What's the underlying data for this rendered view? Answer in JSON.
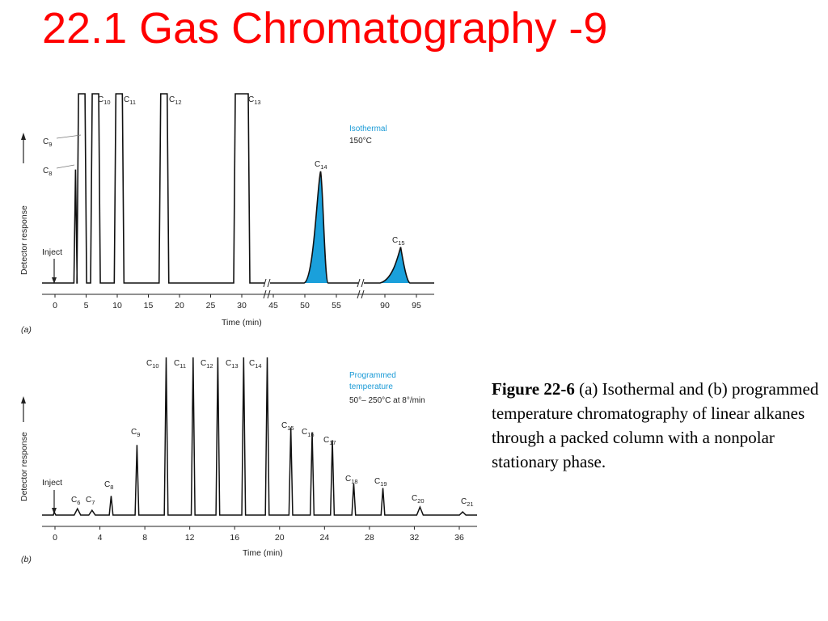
{
  "slide": {
    "title": "22.1 Gas Chromatography -9",
    "caption_fig": "Figure 22-6",
    "caption_text": " (a) Isothermal and (b) programmed temperature chromatography of linear alkanes through a packed column with a nonpolar stationary phase."
  },
  "chart_data": [
    {
      "type": "line",
      "panel_label": "(a)",
      "xlabel": "Time (min)",
      "ylabel": "Detector response",
      "x_ticks": [
        "0",
        "5",
        "10",
        "15",
        "20",
        "25",
        "30",
        "45",
        "50",
        "55",
        "90",
        "95"
      ],
      "axis_breaks": [
        "35-45",
        "60-85"
      ],
      "annotation": [
        "Isothermal",
        "150°C"
      ],
      "inject_label": "Inject",
      "peaks": [
        {
          "label": "C",
          "sub": "8",
          "x": 3.3,
          "rel_height": 0.6,
          "highlight": false
        },
        {
          "label": "C",
          "sub": "9",
          "x": 4.3,
          "rel_height": 0.92,
          "offscale": true,
          "highlight": false
        },
        {
          "label": "C",
          "sub": "10",
          "x": 6.5,
          "offscale": true,
          "highlight": false
        },
        {
          "label": "C",
          "sub": "11",
          "x": 10.3,
          "offscale": true,
          "highlight": false
        },
        {
          "label": "C",
          "sub": "12",
          "x": 17.5,
          "offscale": true,
          "highlight": false
        },
        {
          "label": "C",
          "sub": "13",
          "x": 30,
          "offscale": true,
          "highlight": false
        },
        {
          "label": "C",
          "sub": "14",
          "x": 52.5,
          "rel_height": 0.59,
          "highlight": true
        },
        {
          "label": "C",
          "sub": "15",
          "x": 92.5,
          "rel_height": 0.19,
          "highlight": true
        }
      ],
      "colors": {
        "trace": "#111111",
        "highlight_fill": "#1aa0db",
        "highlight_label": "#1a9ad6"
      }
    },
    {
      "type": "line",
      "panel_label": "(b)",
      "xlabel": "Time (min)",
      "ylabel": "Detector response",
      "x_ticks": [
        "0",
        "4",
        "8",
        "12",
        "16",
        "20",
        "24",
        "28",
        "32",
        "36"
      ],
      "xlim": [
        0,
        37
      ],
      "annotation": [
        "Programmed",
        "temperature",
        "50°– 250°C at 8°/min"
      ],
      "inject_label": "Inject",
      "peaks": [
        {
          "label": "C",
          "sub": "6",
          "x": 2.0,
          "rel_height": 0.04,
          "highlight": false
        },
        {
          "label": "C",
          "sub": "7",
          "x": 3.3,
          "rel_height": 0.03,
          "highlight": false
        },
        {
          "label": "C",
          "sub": "8",
          "x": 5.0,
          "rel_height": 0.12,
          "highlight": false
        },
        {
          "label": "C",
          "sub": "9",
          "x": 7.3,
          "rel_height": 0.44,
          "highlight": false
        },
        {
          "label": "C",
          "sub": "10",
          "x": 9.9,
          "rel_height": 0.99,
          "highlight": false
        },
        {
          "label": "C",
          "sub": "11",
          "x": 12.3,
          "rel_height": 0.99,
          "highlight": false
        },
        {
          "label": "C",
          "sub": "12",
          "x": 14.5,
          "rel_height": 0.99,
          "highlight": false
        },
        {
          "label": "C",
          "sub": "13",
          "x": 16.8,
          "rel_height": 0.99,
          "highlight": false
        },
        {
          "label": "C",
          "sub": "14",
          "x": 18.9,
          "rel_height": 0.99,
          "highlight": true
        },
        {
          "label": "C",
          "sub": "15",
          "x": 21.0,
          "rel_height": 0.55,
          "highlight": true
        },
        {
          "label": "C",
          "sub": "16",
          "x": 22.9,
          "rel_height": 0.52,
          "highlight": false
        },
        {
          "label": "C",
          "sub": "17",
          "x": 24.7,
          "rel_height": 0.47,
          "highlight": false
        },
        {
          "label": "C",
          "sub": "18",
          "x": 26.6,
          "rel_height": 0.2,
          "highlight": false
        },
        {
          "label": "C",
          "sub": "19",
          "x": 29.2,
          "rel_height": 0.17,
          "highlight": false
        },
        {
          "label": "C",
          "sub": "20",
          "x": 32.5,
          "rel_height": 0.05,
          "highlight": false
        },
        {
          "label": "C",
          "sub": "21",
          "x": 36.3,
          "rel_height": 0.02,
          "highlight": false
        }
      ],
      "colors": {
        "trace": "#111111",
        "highlight_label": "#1a9ad6"
      }
    }
  ]
}
